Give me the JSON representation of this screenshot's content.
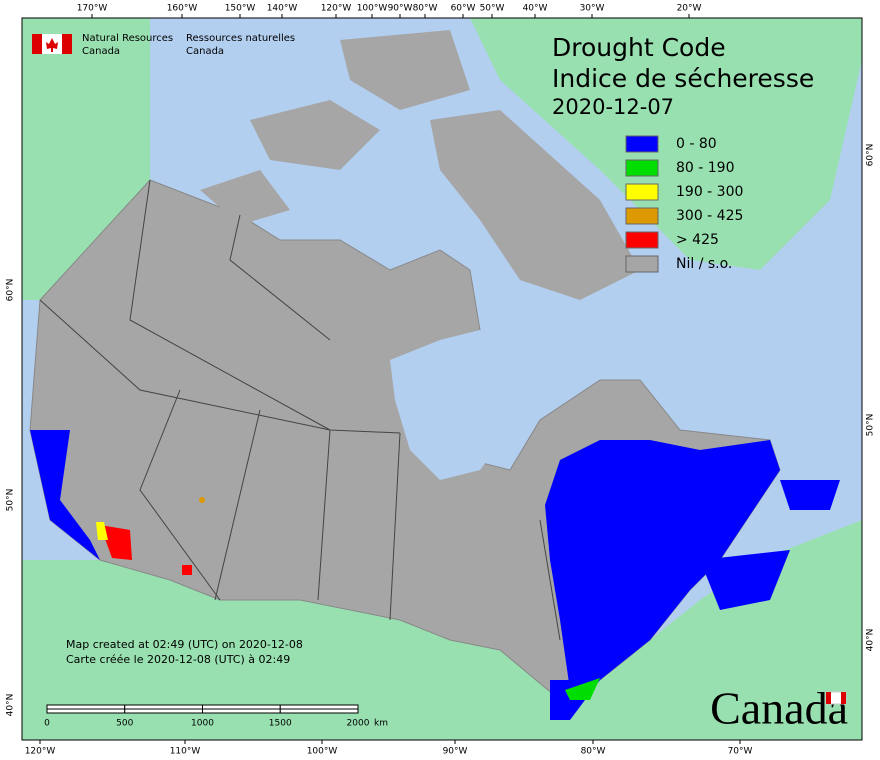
{
  "agency": {
    "en": [
      "Natural Resources",
      "Canada"
    ],
    "fr": [
      "Ressources naturelles",
      "Canada"
    ]
  },
  "title": {
    "en": "Drought Code",
    "fr": "Indice de sécheresse",
    "date": "2020-12-07"
  },
  "legend": [
    {
      "label": "0 - 80",
      "color": "#0000ff"
    },
    {
      "label": "80 - 190",
      "color": "#00dd00"
    },
    {
      "label": "190 - 300",
      "color": "#ffff00"
    },
    {
      "label": "300 - 425",
      "color": "#dd9900"
    },
    {
      "label": "> 425",
      "color": "#ff0000"
    },
    {
      "label": "Nil / s.o.",
      "color": "#a6a6a6"
    }
  ],
  "graticule": {
    "top": [
      "170°W",
      "160°W",
      "150°W",
      "140°W",
      "120°W",
      "100°W",
      "90°W",
      "80°W",
      "60°W",
      "50°W",
      "40°W",
      "30°W",
      "20°W"
    ],
    "bottom": [
      "120°W",
      "110°W",
      "100°W",
      "90°W",
      "80°W",
      "70°W"
    ],
    "left": [
      "60°N",
      "50°N",
      "40°N"
    ],
    "right": [
      "60°N",
      "50°N",
      "40°N"
    ]
  },
  "scale_bar": {
    "labels": [
      0,
      500,
      1000,
      1500,
      2000
    ],
    "unit": "km"
  },
  "credits": [
    "Map created at 02:49 (UTC) on 2020-12-08",
    "Carte créée le 2020-12-08 (UTC) à 02:49"
  ],
  "wordmark": "Canada"
}
